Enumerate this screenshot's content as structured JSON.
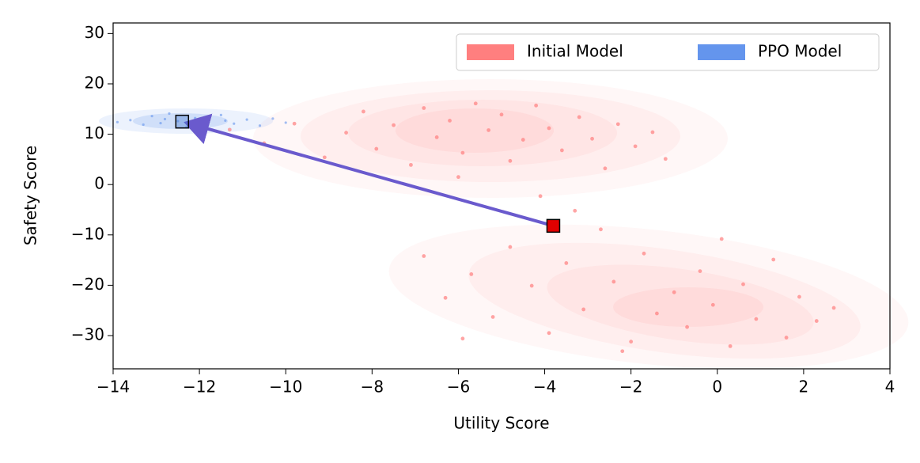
{
  "chart_data": {
    "type": "scatter",
    "xlabel": "Utility Score",
    "ylabel": "Safety Score",
    "xlim": [
      -14,
      4
    ],
    "ylim": [
      -36.6,
      32.1
    ],
    "xticks": [
      {
        "value": -14,
        "label": "−14"
      },
      {
        "value": -12,
        "label": "−12"
      },
      {
        "value": -10,
        "label": "−10"
      },
      {
        "value": -8,
        "label": "−8"
      },
      {
        "value": -6,
        "label": "−6"
      },
      {
        "value": -4,
        "label": "−4"
      },
      {
        "value": -2,
        "label": "−2"
      },
      0,
      2,
      4
    ],
    "yticks": [
      {
        "value": -30,
        "label": "−30"
      },
      {
        "value": -20,
        "label": "−20"
      },
      {
        "value": -10,
        "label": "−10"
      },
      0,
      10,
      20,
      30
    ],
    "grid": false,
    "legend": "upper right",
    "series": [
      {
        "name": "Initial Model",
        "color": "#ff7f7f",
        "x": [
          -10.5,
          -9.8,
          -9.1,
          -8.6,
          -8.2,
          -7.9,
          -7.5,
          -7.1,
          -6.8,
          -6.5,
          -6.2,
          -5.9,
          -5.6,
          -5.3,
          -5.0,
          -4.8,
          -4.5,
          -4.2,
          -3.9,
          -3.6,
          -3.2,
          -2.9,
          -2.6,
          -2.3,
          -1.9,
          -1.5,
          -1.2,
          -11.3,
          -6.0,
          -4.1,
          -6.8,
          -6.3,
          -5.7,
          -5.2,
          -4.8,
          -4.3,
          -3.9,
          -3.5,
          -3.1,
          -2.7,
          -2.4,
          -2.0,
          -1.7,
          -1.4,
          -1.0,
          -0.7,
          -0.4,
          -0.1,
          0.3,
          0.6,
          0.9,
          1.3,
          1.6,
          1.9,
          2.3,
          2.7,
          -3.3,
          -5.9,
          0.1,
          -2.2
        ],
        "y": [
          8.2,
          12.1,
          5.4,
          10.3,
          14.5,
          7.1,
          11.8,
          3.9,
          15.2,
          9.4,
          12.7,
          6.3,
          16.1,
          10.8,
          13.9,
          4.7,
          8.9,
          15.7,
          11.2,
          6.8,
          13.4,
          9.1,
          3.2,
          12.0,
          7.6,
          10.4,
          5.1,
          10.9,
          1.5,
          -2.3,
          -14.2,
          -22.5,
          -17.8,
          -26.3,
          -12.4,
          -20.1,
          -29.5,
          -15.6,
          -24.8,
          -8.9,
          -19.3,
          -31.2,
          -13.7,
          -25.6,
          -21.4,
          -28.3,
          -17.2,
          -23.9,
          -32.1,
          -19.8,
          -26.7,
          -14.9,
          -30.4,
          -22.3,
          -27.1,
          -24.5,
          -5.2,
          -30.6,
          -10.8,
          -33.1
        ]
      },
      {
        "name": "PPO Model",
        "color": "#6495ed",
        "x": [
          -13.6,
          -13.3,
          -13.1,
          -12.9,
          -12.7,
          -12.5,
          -12.3,
          -12.1,
          -11.9,
          -11.7,
          -11.5,
          -11.2,
          -10.9,
          -10.6,
          -10.3,
          -13.9,
          -12.8,
          -12.2,
          -11.4,
          -10.0
        ],
        "y": [
          12.8,
          11.9,
          13.6,
          12.2,
          14.1,
          12.6,
          11.4,
          13.2,
          12.5,
          10.9,
          13.8,
          12.1,
          12.9,
          11.7,
          13.1,
          12.4,
          13.0,
          12.0,
          12.7,
          12.3
        ]
      }
    ],
    "markers": [
      {
        "x": -3.8,
        "y": -8.2,
        "color": "#e00000"
      },
      {
        "x": -12.4,
        "y": 12.5,
        "color": "#4a7fd8"
      }
    ],
    "arrow_color": "#6a5acd"
  }
}
